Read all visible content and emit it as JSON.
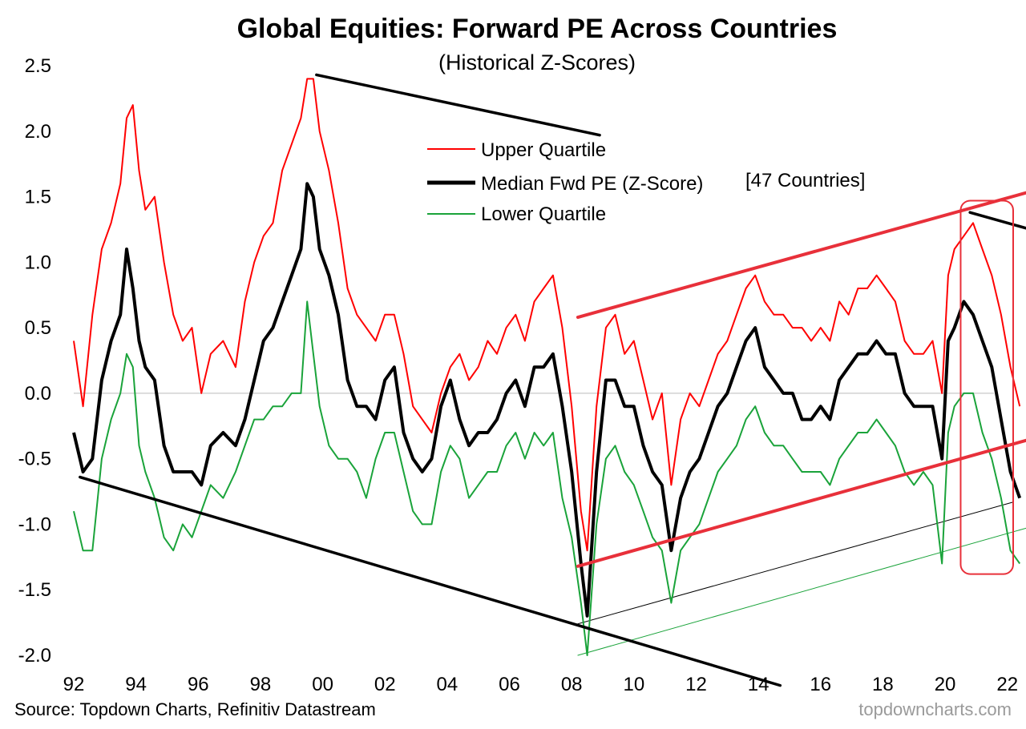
{
  "chart_data": {
    "type": "line",
    "title": "Global Equities: Forward PE Across Countries",
    "subtitle": "(Historical Z-Scores)",
    "source": "Source: Topdown Charts, Refinitiv Datastream",
    "watermark": "topdowncharts.com",
    "xlabel": "",
    "ylabel": "",
    "x_start": 1992.0,
    "x_end": 2022.6,
    "x_tick_values": [
      1992,
      1994,
      1996,
      1998,
      2000,
      2002,
      2004,
      2006,
      2008,
      2010,
      2012,
      2014,
      2016,
      2018,
      2020,
      2022
    ],
    "x_tick_labels": [
      "92",
      "94",
      "96",
      "98",
      "00",
      "02",
      "04",
      "06",
      "08",
      "10",
      "12",
      "14",
      "16",
      "18",
      "20",
      "22"
    ],
    "y_tick_values": [
      2.5,
      2.0,
      1.5,
      1.0,
      0.5,
      0.0,
      -0.5,
      -1.0,
      -1.5,
      -2.0
    ],
    "y_tick_labels": [
      "2.5",
      "2.0",
      "1.5",
      "1.0",
      "0.5",
      "0.0",
      "-0.5",
      "-1.0",
      "-1.5",
      "-2.0"
    ],
    "ylim": [
      -2.0,
      2.5
    ],
    "grid": false,
    "zero_line": true,
    "legend": {
      "placement": "top-center",
      "entries": [
        {
          "series": "upper",
          "label": "Upper Quartile"
        },
        {
          "series": "median",
          "label": "Median Fwd PE (Z-Score)"
        },
        {
          "series": "lower",
          "label": "Lower Quartile"
        }
      ],
      "note": "[47 Countries]"
    },
    "colors": {
      "upper": "#ff0000",
      "median": "#000000",
      "lower": "#1aa33a",
      "annotation_red": "#e8303a",
      "zero_line": "#c8c8c8"
    },
    "series": [
      {
        "key": "upper",
        "name": "Upper Quartile",
        "x": [
          1992.0,
          1992.3,
          1992.6,
          1992.9,
          1993.2,
          1993.5,
          1993.7,
          1993.9,
          1994.1,
          1994.3,
          1994.6,
          1994.9,
          1995.2,
          1995.5,
          1995.8,
          1996.1,
          1996.4,
          1996.8,
          1997.2,
          1997.5,
          1997.8,
          1998.1,
          1998.4,
          1998.7,
          1999.0,
          1999.3,
          1999.5,
          1999.7,
          1999.9,
          2000.2,
          2000.5,
          2000.8,
          2001.1,
          2001.4,
          2001.7,
          2002.0,
          2002.3,
          2002.6,
          2002.9,
          2003.2,
          2003.5,
          2003.8,
          2004.1,
          2004.4,
          2004.7,
          2005.0,
          2005.3,
          2005.6,
          2005.9,
          2006.2,
          2006.5,
          2006.8,
          2007.1,
          2007.4,
          2007.7,
          2008.0,
          2008.3,
          2008.5,
          2008.8,
          2009.1,
          2009.4,
          2009.7,
          2010.0,
          2010.3,
          2010.6,
          2010.9,
          2011.2,
          2011.5,
          2011.8,
          2012.1,
          2012.4,
          2012.7,
          2013.0,
          2013.3,
          2013.6,
          2013.9,
          2014.2,
          2014.5,
          2014.8,
          2015.1,
          2015.4,
          2015.7,
          2016.0,
          2016.3,
          2016.6,
          2016.9,
          2017.2,
          2017.5,
          2017.8,
          2018.1,
          2018.4,
          2018.7,
          2019.0,
          2019.3,
          2019.6,
          2019.9,
          2020.1,
          2020.3,
          2020.6,
          2020.9,
          2021.2,
          2021.5,
          2021.8,
          2022.1,
          2022.4
        ],
        "values": [
          0.4,
          -0.1,
          0.6,
          1.1,
          1.3,
          1.6,
          2.1,
          2.2,
          1.7,
          1.4,
          1.5,
          1.0,
          0.6,
          0.4,
          0.5,
          0.0,
          0.3,
          0.4,
          0.2,
          0.7,
          1.0,
          1.2,
          1.3,
          1.7,
          1.9,
          2.1,
          2.4,
          2.4,
          2.0,
          1.7,
          1.3,
          0.8,
          0.6,
          0.5,
          0.4,
          0.6,
          0.6,
          0.3,
          -0.1,
          -0.2,
          -0.3,
          0.0,
          0.2,
          0.3,
          0.1,
          0.2,
          0.4,
          0.3,
          0.5,
          0.6,
          0.4,
          0.7,
          0.8,
          0.9,
          0.5,
          -0.1,
          -0.9,
          -1.2,
          -0.1,
          0.5,
          0.6,
          0.3,
          0.4,
          0.1,
          -0.2,
          0.0,
          -0.7,
          -0.2,
          0.0,
          -0.1,
          0.1,
          0.3,
          0.4,
          0.6,
          0.8,
          0.9,
          0.7,
          0.6,
          0.6,
          0.5,
          0.5,
          0.4,
          0.5,
          0.4,
          0.7,
          0.6,
          0.8,
          0.8,
          0.9,
          0.8,
          0.7,
          0.4,
          0.3,
          0.3,
          0.4,
          0.0,
          0.9,
          1.1,
          1.2,
          1.3,
          1.1,
          0.9,
          0.6,
          0.2,
          -0.1
        ]
      },
      {
        "key": "median",
        "name": "Median Fwd PE (Z-Score)",
        "x": [
          1992.0,
          1992.3,
          1992.6,
          1992.9,
          1993.2,
          1993.5,
          1993.7,
          1993.9,
          1994.1,
          1994.3,
          1994.6,
          1994.9,
          1995.2,
          1995.5,
          1995.8,
          1996.1,
          1996.4,
          1996.8,
          1997.2,
          1997.5,
          1997.8,
          1998.1,
          1998.4,
          1998.7,
          1999.0,
          1999.3,
          1999.5,
          1999.7,
          1999.9,
          2000.2,
          2000.5,
          2000.8,
          2001.1,
          2001.4,
          2001.7,
          2002.0,
          2002.3,
          2002.6,
          2002.9,
          2003.2,
          2003.5,
          2003.8,
          2004.1,
          2004.4,
          2004.7,
          2005.0,
          2005.3,
          2005.6,
          2005.9,
          2006.2,
          2006.5,
          2006.8,
          2007.1,
          2007.4,
          2007.7,
          2008.0,
          2008.3,
          2008.5,
          2008.8,
          2009.1,
          2009.4,
          2009.7,
          2010.0,
          2010.3,
          2010.6,
          2010.9,
          2011.2,
          2011.5,
          2011.8,
          2012.1,
          2012.4,
          2012.7,
          2013.0,
          2013.3,
          2013.6,
          2013.9,
          2014.2,
          2014.5,
          2014.8,
          2015.1,
          2015.4,
          2015.7,
          2016.0,
          2016.3,
          2016.6,
          2016.9,
          2017.2,
          2017.5,
          2017.8,
          2018.1,
          2018.4,
          2018.7,
          2019.0,
          2019.3,
          2019.6,
          2019.9,
          2020.1,
          2020.3,
          2020.6,
          2020.9,
          2021.2,
          2021.5,
          2021.8,
          2022.1,
          2022.4
        ],
        "values": [
          -0.3,
          -0.6,
          -0.5,
          0.1,
          0.4,
          0.6,
          1.1,
          0.8,
          0.4,
          0.2,
          0.1,
          -0.4,
          -0.6,
          -0.6,
          -0.6,
          -0.7,
          -0.4,
          -0.3,
          -0.4,
          -0.2,
          0.1,
          0.4,
          0.5,
          0.7,
          0.9,
          1.1,
          1.6,
          1.5,
          1.1,
          0.9,
          0.6,
          0.1,
          -0.1,
          -0.1,
          -0.2,
          0.1,
          0.2,
          -0.3,
          -0.5,
          -0.6,
          -0.5,
          -0.1,
          0.1,
          -0.2,
          -0.4,
          -0.3,
          -0.3,
          -0.2,
          0.0,
          0.1,
          -0.1,
          0.2,
          0.2,
          0.3,
          -0.1,
          -0.6,
          -1.3,
          -1.7,
          -0.6,
          0.1,
          0.1,
          -0.1,
          -0.1,
          -0.4,
          -0.6,
          -0.7,
          -1.2,
          -0.8,
          -0.6,
          -0.5,
          -0.3,
          -0.1,
          0.0,
          0.2,
          0.4,
          0.5,
          0.2,
          0.1,
          0.0,
          0.0,
          -0.2,
          -0.2,
          -0.1,
          -0.2,
          0.1,
          0.2,
          0.3,
          0.3,
          0.4,
          0.3,
          0.3,
          0.0,
          -0.1,
          -0.1,
          -0.1,
          -0.5,
          0.4,
          0.5,
          0.7,
          0.6,
          0.4,
          0.2,
          -0.2,
          -0.6,
          -0.8
        ]
      },
      {
        "key": "lower",
        "name": "Lower Quartile",
        "x": [
          1992.0,
          1992.3,
          1992.6,
          1992.9,
          1993.2,
          1993.5,
          1993.7,
          1993.9,
          1994.1,
          1994.3,
          1994.6,
          1994.9,
          1995.2,
          1995.5,
          1995.8,
          1996.1,
          1996.4,
          1996.8,
          1997.2,
          1997.5,
          1997.8,
          1998.1,
          1998.4,
          1998.7,
          1999.0,
          1999.3,
          1999.5,
          1999.7,
          1999.9,
          2000.2,
          2000.5,
          2000.8,
          2001.1,
          2001.4,
          2001.7,
          2002.0,
          2002.3,
          2002.6,
          2002.9,
          2003.2,
          2003.5,
          2003.8,
          2004.1,
          2004.4,
          2004.7,
          2005.0,
          2005.3,
          2005.6,
          2005.9,
          2006.2,
          2006.5,
          2006.8,
          2007.1,
          2007.4,
          2007.7,
          2008.0,
          2008.3,
          2008.5,
          2008.8,
          2009.1,
          2009.4,
          2009.7,
          2010.0,
          2010.3,
          2010.6,
          2010.9,
          2011.2,
          2011.5,
          2011.8,
          2012.1,
          2012.4,
          2012.7,
          2013.0,
          2013.3,
          2013.6,
          2013.9,
          2014.2,
          2014.5,
          2014.8,
          2015.1,
          2015.4,
          2015.7,
          2016.0,
          2016.3,
          2016.6,
          2016.9,
          2017.2,
          2017.5,
          2017.8,
          2018.1,
          2018.4,
          2018.7,
          2019.0,
          2019.3,
          2019.6,
          2019.9,
          2020.1,
          2020.3,
          2020.6,
          2020.9,
          2021.2,
          2021.5,
          2021.8,
          2022.1,
          2022.4
        ],
        "values": [
          -0.9,
          -1.2,
          -1.2,
          -0.5,
          -0.2,
          0.0,
          0.3,
          0.2,
          -0.4,
          -0.6,
          -0.8,
          -1.1,
          -1.2,
          -1.0,
          -1.1,
          -0.9,
          -0.7,
          -0.8,
          -0.6,
          -0.4,
          -0.2,
          -0.2,
          -0.1,
          -0.1,
          0.0,
          0.0,
          0.7,
          0.3,
          -0.1,
          -0.4,
          -0.5,
          -0.5,
          -0.6,
          -0.8,
          -0.5,
          -0.3,
          -0.3,
          -0.6,
          -0.9,
          -1.0,
          -1.0,
          -0.6,
          -0.4,
          -0.5,
          -0.8,
          -0.7,
          -0.6,
          -0.6,
          -0.4,
          -0.3,
          -0.5,
          -0.3,
          -0.4,
          -0.3,
          -0.8,
          -1.1,
          -1.6,
          -2.0,
          -1.0,
          -0.5,
          -0.4,
          -0.6,
          -0.7,
          -0.9,
          -1.1,
          -1.2,
          -1.6,
          -1.2,
          -1.1,
          -1.0,
          -0.8,
          -0.6,
          -0.5,
          -0.4,
          -0.2,
          -0.1,
          -0.3,
          -0.4,
          -0.4,
          -0.5,
          -0.6,
          -0.6,
          -0.6,
          -0.7,
          -0.5,
          -0.4,
          -0.3,
          -0.3,
          -0.2,
          -0.3,
          -0.4,
          -0.6,
          -0.7,
          -0.6,
          -0.7,
          -1.3,
          -0.3,
          -0.1,
          0.0,
          0.0,
          -0.3,
          -0.5,
          -0.8,
          -1.2,
          -1.3
        ]
      }
    ],
    "annotations": [
      {
        "type": "trendline",
        "color": "black",
        "x1": 1999.8,
        "y1": 2.43,
        "x2": 2008.9,
        "y2": 1.97
      },
      {
        "type": "trendline",
        "color": "black",
        "x1": 2020.8,
        "y1": 1.38,
        "x2": 2022.6,
        "y2": 1.26
      },
      {
        "type": "trendline",
        "color": "black",
        "x1": 1992.2,
        "y1": -0.64,
        "x2": 2014.7,
        "y2": -2.23
      },
      {
        "type": "trendline",
        "color": "annotation_red",
        "x1": 2008.2,
        "y1": 0.58,
        "x2": 2022.6,
        "y2": 1.53
      },
      {
        "type": "trendline",
        "color": "annotation_red",
        "x1": 2008.2,
        "y1": -1.32,
        "x2": 2022.6,
        "y2": -0.36
      },
      {
        "type": "thin-line",
        "color": "black",
        "x1": 2008.2,
        "y1": -1.76,
        "x2": 2022.2,
        "y2": -0.83
      },
      {
        "type": "thin-line",
        "color": "lower",
        "x1": 2008.2,
        "y1": -2.0,
        "x2": 2022.6,
        "y2": -1.03
      },
      {
        "type": "highlight-box",
        "color": "annotation_red",
        "x1": 2020.5,
        "x2": 2022.6,
        "y_top": 1.47,
        "y_bottom": -1.38
      }
    ]
  }
}
